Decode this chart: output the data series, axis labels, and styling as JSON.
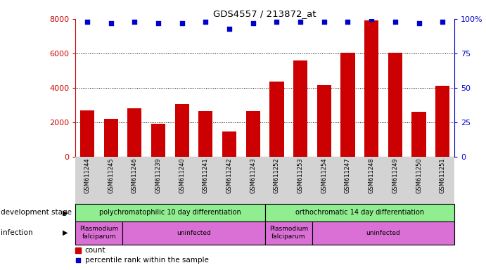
{
  "title": "GDS4557 / 213872_at",
  "samples": [
    "GSM611244",
    "GSM611245",
    "GSM611246",
    "GSM611239",
    "GSM611240",
    "GSM611241",
    "GSM611242",
    "GSM611243",
    "GSM611252",
    "GSM611253",
    "GSM611254",
    "GSM611247",
    "GSM611248",
    "GSM611249",
    "GSM611250",
    "GSM611251"
  ],
  "counts": [
    2700,
    2200,
    2800,
    1900,
    3050,
    2650,
    1450,
    2650,
    4350,
    5600,
    4150,
    6050,
    7900,
    6050,
    2600,
    4100
  ],
  "percentile_ranks": [
    98,
    97,
    98,
    97,
    97,
    98,
    93,
    97,
    98,
    98,
    98,
    98,
    100,
    98,
    97,
    98
  ],
  "bar_color": "#CC0000",
  "dot_color": "#0000CC",
  "left_axis_color": "#CC0000",
  "right_axis_color": "#0000CC",
  "ylim_left": [
    0,
    8000
  ],
  "ylim_right": [
    0,
    100
  ],
  "yticks_left": [
    0,
    2000,
    4000,
    6000,
    8000
  ],
  "yticks_right": [
    0,
    25,
    50,
    75,
    100
  ],
  "ytick_labels_right": [
    "0",
    "25",
    "50",
    "75",
    "100%"
  ],
  "grid_values": [
    2000,
    4000,
    6000
  ],
  "dev_groups": [
    {
      "label": "polychromatophilic 10 day differentiation",
      "start": 0,
      "end": 8
    },
    {
      "label": "orthochromatic 14 day differentiation",
      "start": 8,
      "end": 16
    }
  ],
  "inf_groups": [
    {
      "label": "Plasmodium\nfalciparum",
      "start": 0,
      "end": 2
    },
    {
      "label": "uninfected",
      "start": 2,
      "end": 8
    },
    {
      "label": "Plasmodium\nfalciparum",
      "start": 8,
      "end": 10
    },
    {
      "label": "uninfected",
      "start": 10,
      "end": 16
    }
  ],
  "dev_color": "#90EE90",
  "inf_color": "#DA70D6",
  "tick_bg_color": "#D3D3D3",
  "bg_color": "#FFFFFF",
  "left_label_dev": "development stage",
  "left_label_inf": "infection",
  "legend_label_count": "count",
  "legend_label_pct": "percentile rank within the sample"
}
